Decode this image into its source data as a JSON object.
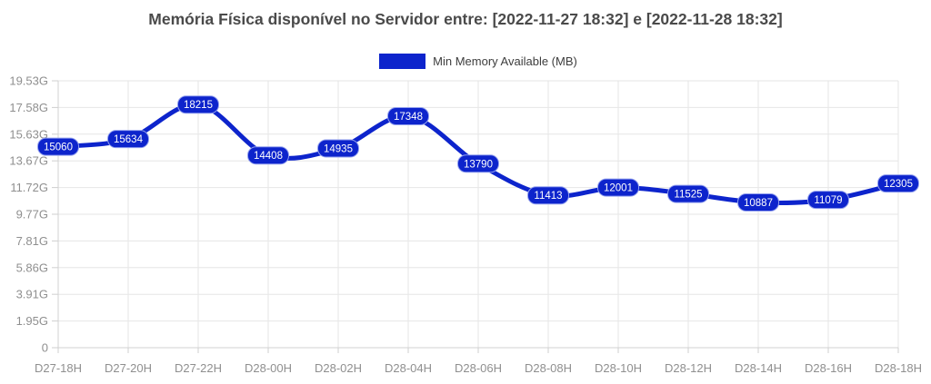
{
  "chart_data": {
    "type": "line",
    "title": "Memória Física disponível no Servidor entre: [2022-11-27 18:32] e [2022-11-28 18:32]",
    "categories": [
      "D27-18H",
      "D27-20H",
      "D27-22H",
      "D28-00H",
      "D28-02H",
      "D28-04H",
      "D28-06H",
      "D28-08H",
      "D28-10H",
      "D28-12H",
      "D28-14H",
      "D28-16H",
      "D28-18H"
    ],
    "series": [
      {
        "name": "Min Memory Available (MB)",
        "color": "#0d24cc",
        "values": [
          15060,
          15634,
          18215,
          14408,
          14935,
          17348,
          13790,
          11413,
          12001,
          11525,
          10887,
          11079,
          12305
        ]
      }
    ],
    "xlabel": "",
    "ylabel": "",
    "ylim": [
      0,
      20000
    ],
    "y_unit": "MB displayed as G",
    "yticks": [
      {
        "value": 20000,
        "label": "19.53G"
      },
      {
        "value": 18000,
        "label": "17.58G"
      },
      {
        "value": 16000,
        "label": "15.63G"
      },
      {
        "value": 14000,
        "label": "13.67G"
      },
      {
        "value": 12000,
        "label": "11.72G"
      },
      {
        "value": 10000,
        "label": "9.77G"
      },
      {
        "value": 8000,
        "label": "7.81G"
      },
      {
        "value": 6000,
        "label": "5.86G"
      },
      {
        "value": 4000,
        "label": "3.91G"
      },
      {
        "value": 2000,
        "label": "1.95G"
      },
      {
        "value": 0,
        "label": "0"
      }
    ],
    "grid": true,
    "legend_position": "top-center",
    "show_point_labels": true,
    "colors": {
      "grid": "#e6e6e6",
      "axis": "#d2d2d2",
      "tick": "#cfcfcf",
      "tick_label": "#8f8f8f",
      "title": "#4a4a4a",
      "legend_text": "#3d3d3d",
      "point_label_fill": "#0d24cc",
      "point_label_border": "#93a0ee",
      "point_label_text": "#ffffff"
    }
  }
}
